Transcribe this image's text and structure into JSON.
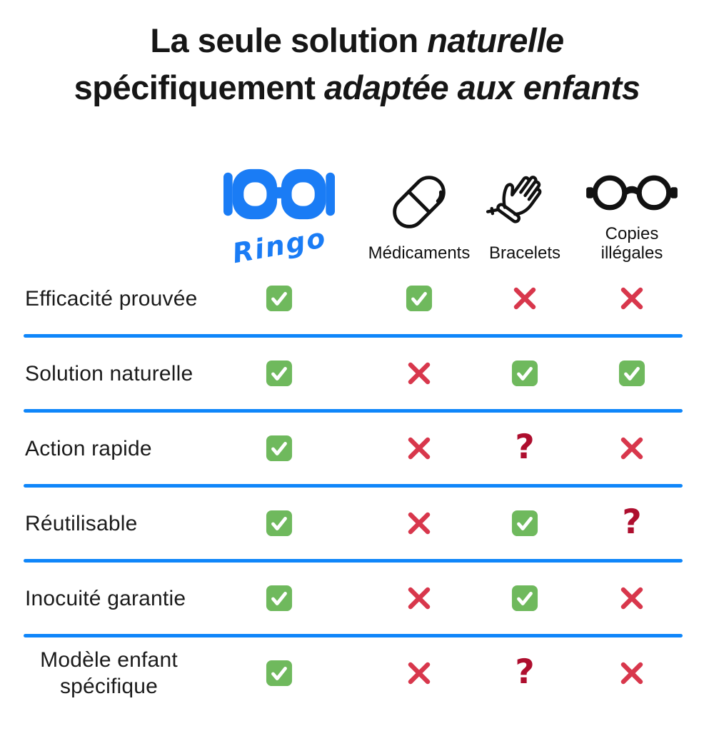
{
  "colors": {
    "accent-blue": "#1A7CF5",
    "divider-blue": "#0F86FA",
    "check-green": "#6FB95D",
    "cross-red": "#D8374C",
    "question-red": "#AE0E2E"
  },
  "title": {
    "line1_regular": "La seule solution ",
    "line1_italic": "naturelle",
    "line2_regular": "spécifiquement ",
    "line2_italic": "adaptée aux enfants"
  },
  "columns": {
    "ringo": {
      "name": "Ringo",
      "logo_text": "Ringo",
      "icon": "blue-glasses-icon"
    },
    "medicaments": {
      "label": "Médicaments",
      "icon": "pill-icon"
    },
    "bracelets": {
      "label": "Bracelets",
      "icon": "hand-bracelet-icon"
    },
    "copies": {
      "label": "Copies illégales",
      "icon": "round-glasses-icon"
    }
  },
  "table": {
    "rows": [
      {
        "label": "Efficacité prouvée",
        "marks": [
          "check",
          "check",
          "cross",
          "cross"
        ]
      },
      {
        "label": "Solution naturelle",
        "marks": [
          "check",
          "cross",
          "check",
          "check"
        ]
      },
      {
        "label": "Action rapide",
        "marks": [
          "check",
          "cross",
          "question",
          "cross"
        ]
      },
      {
        "label": "Réutilisable",
        "marks": [
          "check",
          "cross",
          "check",
          "question"
        ]
      },
      {
        "label": "Inocuité garantie",
        "marks": [
          "check",
          "cross",
          "check",
          "cross"
        ]
      },
      {
        "label": "Modèle enfant spécifique",
        "marks": [
          "check",
          "cross",
          "question",
          "cross"
        ]
      }
    ]
  }
}
